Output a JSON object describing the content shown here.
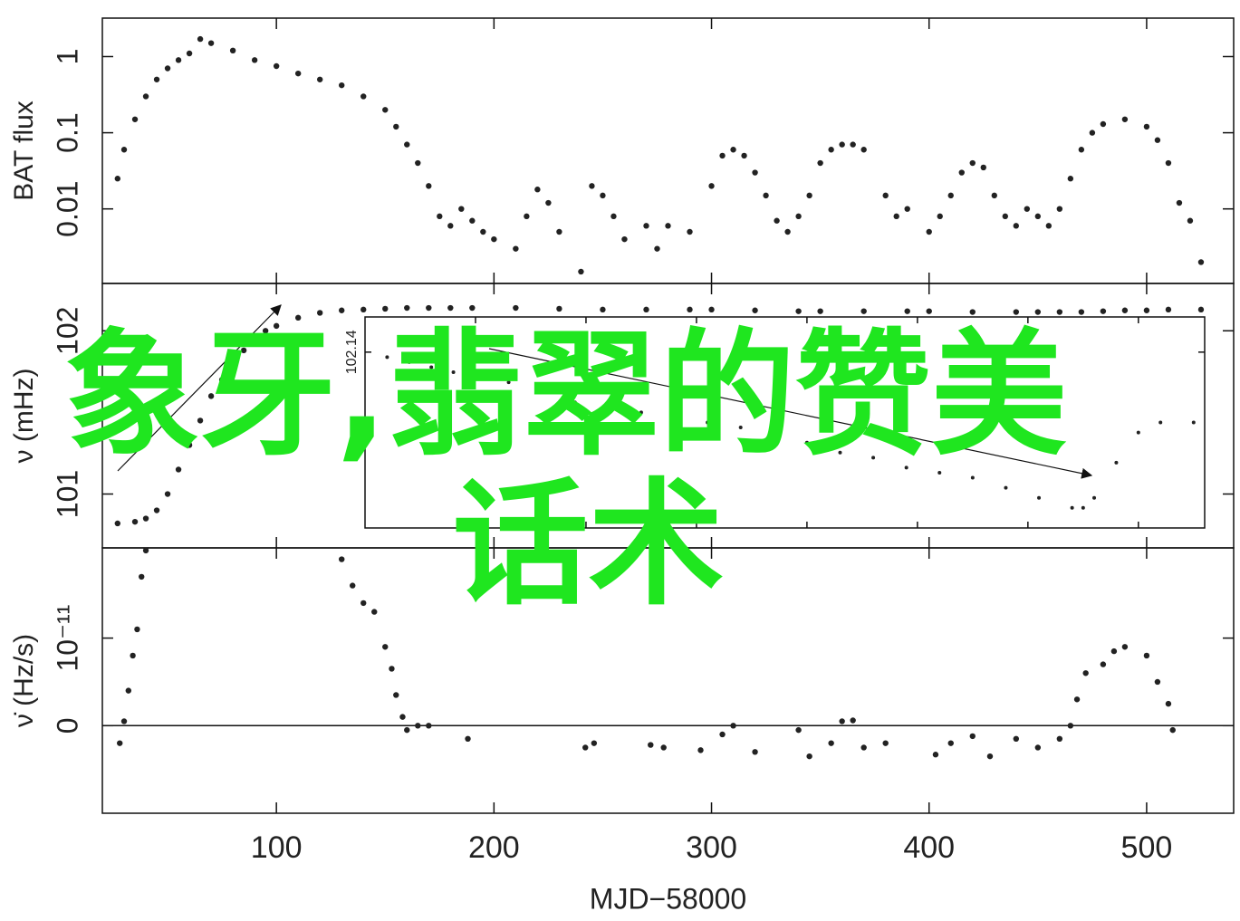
{
  "chart_data": [
    {
      "type": "scatter",
      "ylabel": "BAT flux",
      "ylog": true,
      "xlim": [
        20,
        540
      ],
      "xticks": [
        100,
        200,
        300,
        400,
        500
      ],
      "ylim": [
        0.00105,
        3.2
      ],
      "yticks": [
        0.01,
        0.1,
        1
      ],
      "color": "#222222",
      "x": [
        27,
        30,
        35,
        40,
        45,
        50,
        55,
        60,
        65,
        70,
        80,
        90,
        100,
        110,
        120,
        130,
        140,
        150,
        155,
        160,
        165,
        170,
        175,
        180,
        185,
        190,
        195,
        200,
        210,
        215,
        220,
        225,
        230,
        240,
        245,
        250,
        255,
        260,
        270,
        275,
        280,
        290,
        300,
        305,
        310,
        315,
        320,
        325,
        330,
        335,
        340,
        345,
        350,
        355,
        360,
        365,
        370,
        380,
        385,
        390,
        400,
        405,
        410,
        415,
        420,
        425,
        430,
        435,
        440,
        445,
        450,
        455,
        460,
        465,
        470,
        475,
        480,
        490,
        500,
        505,
        510,
        515,
        520,
        525
      ],
      "values": [
        0.025,
        0.06,
        0.15,
        0.3,
        0.5,
        0.7,
        0.9,
        1.1,
        1.7,
        1.5,
        1.2,
        0.9,
        0.75,
        0.6,
        0.5,
        0.42,
        0.3,
        0.2,
        0.12,
        0.07,
        0.04,
        0.02,
        0.008,
        0.006,
        0.01,
        0.007,
        0.005,
        0.004,
        0.003,
        0.008,
        0.018,
        0.012,
        0.005,
        0.0015,
        0.02,
        0.015,
        0.008,
        0.004,
        0.006,
        0.003,
        0.006,
        0.005,
        0.02,
        0.05,
        0.06,
        0.05,
        0.03,
        0.015,
        0.007,
        0.005,
        0.008,
        0.015,
        0.04,
        0.06,
        0.07,
        0.07,
        0.06,
        0.015,
        0.008,
        0.01,
        0.005,
        0.008,
        0.015,
        0.03,
        0.04,
        0.035,
        0.015,
        0.008,
        0.006,
        0.01,
        0.008,
        0.006,
        0.01,
        0.025,
        0.06,
        0.1,
        0.13,
        0.15,
        0.12,
        0.08,
        0.04,
        0.012,
        0.007,
        0.002
      ]
    },
    {
      "type": "scatter",
      "ylabel": "ν (mHz)",
      "xlim": [
        20,
        540
      ],
      "xticks": [
        100,
        200,
        300,
        400,
        500
      ],
      "ylim": [
        100.67,
        102.29
      ],
      "yticks": [
        101,
        102
      ],
      "color": "#222222",
      "x": [
        27,
        35,
        40,
        45,
        50,
        55,
        60,
        65,
        70,
        75,
        80,
        85,
        90,
        95,
        100,
        110,
        120,
        130,
        140,
        150,
        160,
        170,
        180,
        190,
        210,
        230,
        250,
        270,
        290,
        300,
        320,
        340,
        350,
        370,
        390,
        400,
        420,
        440,
        450,
        460,
        470,
        480,
        490,
        500,
        510,
        525
      ],
      "values": [
        100.82,
        100.83,
        100.85,
        100.9,
        101.0,
        101.15,
        101.3,
        101.45,
        101.6,
        101.7,
        101.8,
        101.88,
        101.95,
        102.0,
        102.03,
        102.08,
        102.11,
        102.125,
        102.13,
        102.135,
        102.14,
        102.14,
        102.14,
        102.14,
        102.14,
        102.135,
        102.13,
        102.13,
        102.13,
        102.13,
        102.125,
        102.12,
        102.12,
        102.12,
        102.12,
        102.12,
        102.115,
        102.115,
        102.115,
        102.115,
        102.115,
        102.12,
        102.125,
        102.125,
        102.13,
        102.13
      ]
    },
    {
      "type": "scatter",
      "xlim": [
        150,
        530
      ],
      "xticks": [
        200,
        250,
        300,
        350,
        400,
        450,
        500
      ],
      "ylim": [
        102.105,
        102.147
      ],
      "yticks": [
        102.14
      ],
      "color": "#222222",
      "x": [
        160,
        170,
        180,
        190,
        200,
        215,
        230,
        245,
        260,
        275,
        290,
        305,
        320,
        335,
        350,
        365,
        380,
        395,
        410,
        425,
        440,
        455,
        470,
        475,
        480,
        490,
        500,
        510,
        525
      ],
      "values": [
        102.139,
        102.138,
        102.137,
        102.136,
        102.135,
        102.134,
        102.132,
        102.13,
        102.129,
        102.128,
        102.127,
        102.126,
        102.125,
        102.124,
        102.122,
        102.12,
        102.119,
        102.117,
        102.116,
        102.115,
        102.113,
        102.111,
        102.109,
        102.109,
        102.111,
        102.118,
        102.124,
        102.126,
        102.126
      ]
    },
    {
      "type": "scatter",
      "ylabel": "ν̇ (Hz/s)",
      "xlabel": "MJD−58000",
      "zero_line": true,
      "xlim": [
        20,
        540
      ],
      "xticks": [
        100,
        200,
        300,
        400,
        500
      ],
      "ylim": [
        -1e-11,
        2.03e-11
      ],
      "yticks": [
        0,
        {
          "value": 1e-11,
          "label": "10⁻¹¹"
        }
      ],
      "color": "#222222",
      "x": [
        28,
        30,
        32,
        34,
        36,
        38,
        40,
        130,
        135,
        140,
        145,
        150,
        153,
        155,
        158,
        160,
        165,
        170,
        188,
        242,
        246,
        272,
        278,
        295,
        305,
        310,
        320,
        340,
        345,
        355,
        360,
        365,
        370,
        380,
        403,
        410,
        420,
        428,
        440,
        450,
        460,
        465,
        468,
        472,
        480,
        485,
        490,
        500,
        505,
        510,
        512
      ],
      "values": [
        -2e-12,
        5e-13,
        4e-12,
        8e-12,
        1.1e-11,
        1.7e-11,
        2e-11,
        1.9e-11,
        1.6e-11,
        1.4e-11,
        1.3e-11,
        9e-12,
        6.5e-12,
        3.5e-12,
        1e-12,
        -5e-13,
        0,
        0,
        -1.5e-12,
        -2.5e-12,
        -2e-12,
        -2.2e-12,
        -2.5e-12,
        -2.8e-12,
        -1e-12,
        0,
        -3e-12,
        -5e-13,
        -3.5e-12,
        -2e-12,
        5e-13,
        6e-13,
        -2.5e-12,
        -2e-12,
        -3.3e-12,
        -2e-12,
        -1.2e-12,
        -3.5e-12,
        -1.5e-12,
        -2.5e-12,
        -1.5e-12,
        0,
        3e-12,
        6e-12,
        7e-12,
        8.5e-12,
        9e-12,
        8e-12,
        5e-12,
        2.5e-12,
        -5e-13
      ]
    }
  ],
  "overlay_text": [
    "象牙,翡翠的赞美",
    "话术"
  ]
}
